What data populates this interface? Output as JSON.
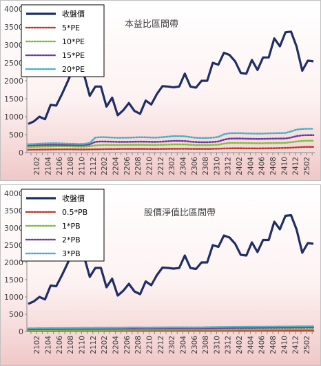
{
  "chart_data": [
    {
      "type": "line",
      "title": "本益比區間帶",
      "xlabel": "",
      "ylabel": "",
      "ylim": [
        0,
        4000
      ],
      "yticks": [
        0,
        500,
        1000,
        1500,
        2000,
        2500,
        3000,
        3500,
        4000
      ],
      "grid": false,
      "legend": "top-left",
      "background": "gradient white to pink",
      "xtick_labels": [
        "2102",
        "2104",
        "2106",
        "2108",
        "2110",
        "2112",
        "2202",
        "2204",
        "2206",
        "2208",
        "2210",
        "2212",
        "2302",
        "2304",
        "2306",
        "2308",
        "2310",
        "2312",
        "2402",
        "2404",
        "2406",
        "2408",
        "2410",
        "2412",
        "2502"
      ],
      "series": [
        {
          "name": "收盤價",
          "style": "solid",
          "color": "#1f2e66",
          "values": [
            800,
            870,
            1000,
            930,
            1330,
            1310,
            1620,
            1960,
            2320,
            2150,
            2160,
            1580,
            1840,
            1840,
            1280,
            1530,
            1040,
            1180,
            1380,
            1160,
            1080,
            1450,
            1340,
            1630,
            1850,
            1840,
            1820,
            1840,
            2200,
            1840,
            1810,
            2000,
            2000,
            2500,
            2450,
            2780,
            2720,
            2540,
            2220,
            2200,
            2580,
            2300,
            2650,
            2650,
            3180,
            2960,
            3350,
            3370,
            2950,
            2280,
            2560,
            2540
          ]
        },
        {
          "name": "5*PE",
          "style": "dotted",
          "color": "#c0392b",
          "values": [
            80,
            82,
            85,
            87,
            88,
            90,
            90,
            92,
            90,
            88,
            88,
            90,
            93,
            95,
            98,
            100,
            102,
            103,
            104,
            104,
            103,
            103,
            102,
            102,
            104,
            106,
            108,
            108,
            108,
            106,
            104,
            104,
            104,
            106,
            110,
            116,
            120,
            122,
            122,
            120,
            120,
            118,
            120,
            122,
            124,
            126,
            130,
            136,
            146,
            156,
            160,
            160
          ]
        },
        {
          "name": "10*PE",
          "style": "dotted",
          "color": "#7fbf3f",
          "values": [
            160,
            162,
            166,
            170,
            172,
            176,
            176,
            176,
            172,
            168,
            168,
            176,
            200,
            210,
            214,
            214,
            212,
            214,
            216,
            218,
            218,
            216,
            214,
            214,
            218,
            224,
            228,
            228,
            226,
            218,
            210,
            210,
            210,
            214,
            222,
            250,
            270,
            270,
            270,
            266,
            264,
            260,
            262,
            266,
            268,
            270,
            272,
            290,
            310,
            325,
            330,
            330
          ]
        },
        {
          "name": "15*PE",
          "style": "dotted",
          "color": "#6a3d9a",
          "values": [
            200,
            205,
            210,
            215,
            215,
            218,
            215,
            214,
            212,
            208,
            210,
            226,
            300,
            310,
            308,
            304,
            300,
            300,
            300,
            304,
            306,
            304,
            300,
            300,
            306,
            318,
            326,
            326,
            322,
            306,
            294,
            290,
            290,
            296,
            310,
            360,
            390,
            392,
            392,
            386,
            384,
            380,
            382,
            386,
            390,
            392,
            394,
            420,
            460,
            480,
            486,
            486
          ]
        },
        {
          "name": "20*PE",
          "style": "dotted",
          "color": "#4ab0c4",
          "values": [
            235,
            240,
            248,
            255,
            260,
            262,
            255,
            250,
            246,
            240,
            244,
            270,
            420,
            430,
            426,
            420,
            414,
            416,
            418,
            424,
            428,
            426,
            420,
            420,
            430,
            446,
            460,
            460,
            456,
            430,
            414,
            408,
            408,
            418,
            436,
            510,
            540,
            542,
            542,
            535,
            532,
            528,
            530,
            536,
            540,
            544,
            546,
            590,
            640,
            660,
            664,
            664
          ]
        }
      ]
    },
    {
      "type": "line",
      "title": "股價淨值比區間帶",
      "xlabel": "",
      "ylabel": "",
      "ylim": [
        0,
        4000
      ],
      "yticks": [
        0,
        500,
        1000,
        1500,
        2000,
        2500,
        3000,
        3500,
        4000
      ],
      "grid": false,
      "legend": "top-left",
      "background": "gradient white to pink",
      "xtick_labels": [
        "2102",
        "2104",
        "2106",
        "2108",
        "2110",
        "2112",
        "2202",
        "2204",
        "2206",
        "2208",
        "2210",
        "2212",
        "2302",
        "2304",
        "2306",
        "2308",
        "2310",
        "2312",
        "2402",
        "2404",
        "2406",
        "2408",
        "2410",
        "2412",
        "2502"
      ],
      "series": [
        {
          "name": "收盤價",
          "style": "solid",
          "color": "#1f2e66",
          "values": [
            800,
            870,
            1000,
            930,
            1330,
            1310,
            1620,
            1960,
            2320,
            2150,
            2160,
            1580,
            1840,
            1840,
            1280,
            1530,
            1040,
            1180,
            1380,
            1160,
            1080,
            1450,
            1340,
            1630,
            1850,
            1840,
            1820,
            1840,
            2200,
            1840,
            1810,
            2000,
            2000,
            2500,
            2450,
            2780,
            2720,
            2540,
            2220,
            2200,
            2580,
            2300,
            2650,
            2650,
            3180,
            2960,
            3350,
            3370,
            2950,
            2280,
            2560,
            2540
          ]
        },
        {
          "name": "0.5*PB",
          "style": "dotted",
          "color": "#c0392b",
          "values": [
            20,
            20,
            21,
            21,
            22,
            22,
            22,
            22,
            23,
            23,
            23,
            23,
            24,
            24,
            24,
            24,
            25,
            25,
            25,
            25,
            25,
            25,
            26,
            26,
            26,
            26,
            26,
            26,
            27,
            27,
            27,
            27,
            27,
            28,
            28,
            28,
            29,
            29,
            29,
            29,
            30,
            30,
            30,
            30,
            31,
            31,
            31,
            32,
            32,
            32,
            33,
            33
          ]
        },
        {
          "name": "1*PB",
          "style": "dotted",
          "color": "#7fbf3f",
          "values": [
            40,
            40,
            41,
            42,
            43,
            43,
            44,
            44,
            45,
            45,
            46,
            46,
            47,
            47,
            48,
            48,
            49,
            49,
            50,
            50,
            50,
            50,
            51,
            51,
            52,
            52,
            52,
            53,
            53,
            53,
            54,
            54,
            54,
            55,
            55,
            56,
            57,
            57,
            58,
            58,
            59,
            59,
            60,
            60,
            61,
            61,
            62,
            63,
            63,
            64,
            65,
            65
          ]
        },
        {
          "name": "2*PB",
          "style": "dotted",
          "color": "#6a3d9a",
          "values": [
            62,
            64,
            66,
            68,
            70,
            70,
            72,
            72,
            74,
            74,
            75,
            75,
            76,
            76,
            78,
            78,
            80,
            80,
            82,
            84,
            84,
            84,
            86,
            86,
            88,
            88,
            90,
            90,
            92,
            90,
            90,
            92,
            94,
            96,
            98,
            100,
            102,
            104,
            104,
            106,
            106,
            108,
            108,
            110,
            110,
            112,
            112,
            114,
            116,
            116,
            118,
            118
          ]
        },
        {
          "name": "3*PB",
          "style": "dotted",
          "color": "#4ab0c4",
          "values": [
            90,
            92,
            94,
            96,
            98,
            98,
            100,
            100,
            102,
            102,
            104,
            104,
            106,
            106,
            108,
            108,
            110,
            110,
            114,
            118,
            116,
            112,
            114,
            116,
            118,
            120,
            122,
            120,
            122,
            118,
            118,
            120,
            124,
            128,
            130,
            132,
            134,
            136,
            136,
            138,
            138,
            140,
            140,
            142,
            142,
            144,
            144,
            146,
            148,
            148,
            150,
            150
          ]
        }
      ]
    }
  ]
}
